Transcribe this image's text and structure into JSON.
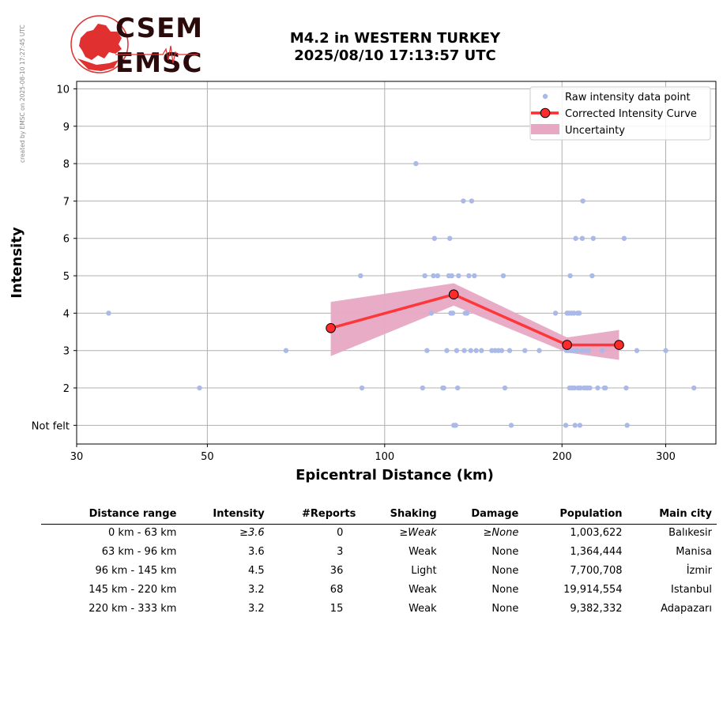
{
  "credit": "created by EMSC on 2025-08-10 17:27:45 UTC",
  "logo": {
    "line1": "CSEM",
    "line2": "EMSC"
  },
  "header": {
    "line1": "M4.2 in WESTERN TURKEY",
    "line2": "2025/08/10 17:13:57 UTC"
  },
  "colors": {
    "raw": "#aab9e8",
    "curve": "#ff2a2a",
    "uncertainty": "#e8a8c4",
    "grid": "#b0b0b0"
  },
  "chart_data": {
    "type": "scatter",
    "xlabel": "Epicentral Distance (km)",
    "ylabel": "Intensity",
    "xscale": "log",
    "xlim": [
      30,
      365
    ],
    "ylim": [
      0.5,
      10.2
    ],
    "xticks": [
      30,
      50,
      100,
      200,
      300
    ],
    "yticks": [
      {
        "value": 1,
        "label": "Not felt"
      },
      {
        "value": 2,
        "label": "2"
      },
      {
        "value": 3,
        "label": "3"
      },
      {
        "value": 4,
        "label": "4"
      },
      {
        "value": 5,
        "label": "5"
      },
      {
        "value": 6,
        "label": "6"
      },
      {
        "value": 7,
        "label": "7"
      },
      {
        "value": 8,
        "label": "8"
      },
      {
        "value": 9,
        "label": "9"
      },
      {
        "value": 10,
        "label": "10"
      }
    ],
    "legend_position": "top-right",
    "grid": true,
    "legend": [
      "Raw intensity data point",
      "Corrected Intensity Curve",
      "Uncertainty"
    ],
    "raw_points": [
      [
        34,
        4
      ],
      [
        48.5,
        2
      ],
      [
        68,
        3
      ],
      [
        91,
        5
      ],
      [
        91.5,
        2
      ],
      [
        113,
        8
      ],
      [
        116,
        2
      ],
      [
        117,
        5
      ],
      [
        118,
        3
      ],
      [
        120,
        4
      ],
      [
        121,
        5
      ],
      [
        121.5,
        6
      ],
      [
        123,
        5
      ],
      [
        125.5,
        2
      ],
      [
        126,
        2
      ],
      [
        127.5,
        3
      ],
      [
        128.5,
        5
      ],
      [
        129,
        6
      ],
      [
        129.5,
        4
      ],
      [
        130,
        5
      ],
      [
        130.5,
        4
      ],
      [
        131,
        1
      ],
      [
        132,
        1
      ],
      [
        132.5,
        3
      ],
      [
        133,
        2
      ],
      [
        133.5,
        5
      ],
      [
        136,
        7
      ],
      [
        136.5,
        3
      ],
      [
        137,
        4
      ],
      [
        138,
        4
      ],
      [
        139,
        5
      ],
      [
        140,
        3
      ],
      [
        140.5,
        7
      ],
      [
        142,
        5
      ],
      [
        143,
        3
      ],
      [
        146,
        3
      ],
      [
        152,
        3
      ],
      [
        154,
        3
      ],
      [
        156,
        3
      ],
      [
        158,
        3
      ],
      [
        159,
        5
      ],
      [
        160,
        2
      ],
      [
        163,
        3
      ],
      [
        164,
        1
      ],
      [
        173,
        3
      ],
      [
        183,
        3
      ],
      [
        195,
        4
      ],
      [
        203,
        1
      ],
      [
        203.5,
        3
      ],
      [
        204,
        4
      ],
      [
        205,
        3
      ],
      [
        205.5,
        4
      ],
      [
        206,
        2
      ],
      [
        206.5,
        5
      ],
      [
        207,
        3
      ],
      [
        207.5,
        4
      ],
      [
        208,
        2
      ],
      [
        209,
        3
      ],
      [
        209.5,
        4
      ],
      [
        210,
        2
      ],
      [
        210.5,
        1
      ],
      [
        211,
        6
      ],
      [
        212,
        3
      ],
      [
        212.5,
        4
      ],
      [
        213,
        2
      ],
      [
        214,
        4
      ],
      [
        214.5,
        1
      ],
      [
        215,
        2
      ],
      [
        216,
        3
      ],
      [
        216.5,
        6
      ],
      [
        217,
        7
      ],
      [
        218,
        2
      ],
      [
        219,
        3
      ],
      [
        220,
        2
      ],
      [
        221,
        2
      ],
      [
        222,
        3
      ],
      [
        223,
        2
      ],
      [
        225,
        5
      ],
      [
        226,
        6
      ],
      [
        230,
        2
      ],
      [
        234,
        3
      ],
      [
        236,
        2
      ],
      [
        237,
        2
      ],
      [
        255,
        6
      ],
      [
        257,
        2
      ],
      [
        258,
        1
      ],
      [
        268,
        3
      ],
      [
        300,
        3
      ],
      [
        335,
        2
      ]
    ],
    "curve": {
      "x": [
        81,
        131,
        204,
        250
      ],
      "y": [
        3.6,
        4.5,
        3.15,
        3.15
      ]
    },
    "uncertainty": {
      "x": [
        81,
        131,
        204,
        250
      ],
      "upper": [
        4.3,
        4.8,
        3.35,
        3.55
      ],
      "lower": [
        2.85,
        4.2,
        2.95,
        2.75
      ]
    }
  },
  "table": {
    "headers": [
      "Distance range",
      "Intensity",
      "#Reports",
      "Shaking",
      "Damage",
      "Population",
      "Main city"
    ],
    "rows": [
      [
        "0 km -   63 km",
        "≥3.6",
        "0",
        "≥Weak",
        "≥None",
        "1,003,622",
        "Balıkesir"
      ],
      [
        "63 km -   96 km",
        "3.6",
        "3",
        "Weak",
        "None",
        "1,364,444",
        "Manisa"
      ],
      [
        "96 km -  145 km",
        "4.5",
        "36",
        "Light",
        "None",
        "7,700,708",
        "İzmir"
      ],
      [
        "145 km -  220 km",
        "3.2",
        "68",
        "Weak",
        "None",
        "19,914,554",
        "Istanbul"
      ],
      [
        "220 km -  333 km",
        "3.2",
        "15",
        "Weak",
        "None",
        "9,382,332",
        "Adapazarı"
      ]
    ]
  }
}
